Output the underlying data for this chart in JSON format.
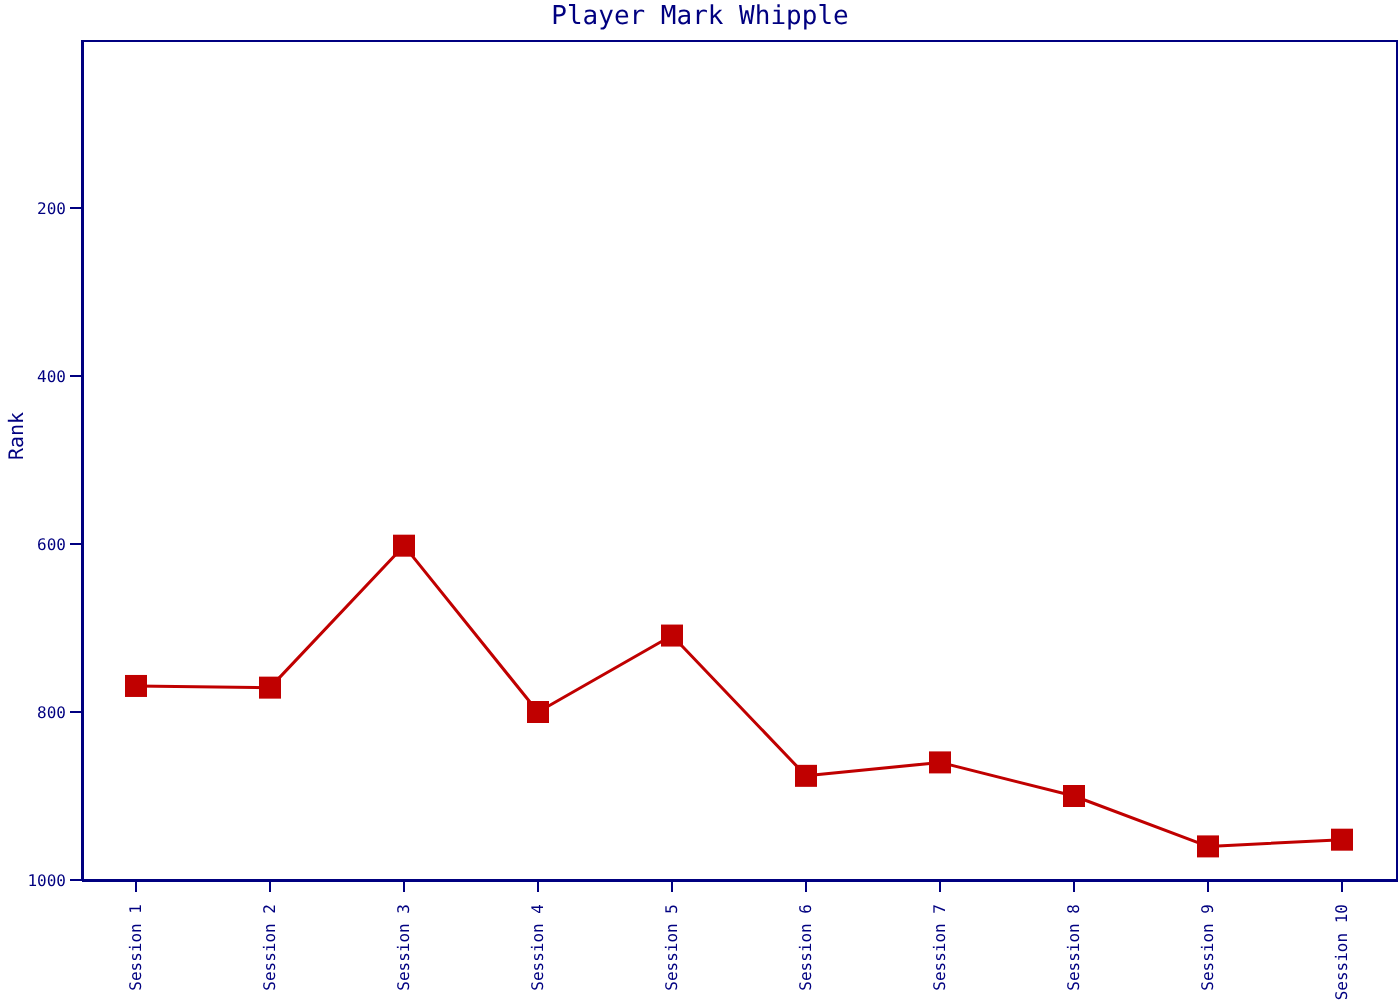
{
  "chart_data": {
    "type": "line",
    "title": "Player Mark Whipple",
    "ylabel": "Rank",
    "categories": [
      "Session 1",
      "Session 2",
      "Session 3",
      "Session 4",
      "Session 5",
      "Session 6",
      "Session 7",
      "Session 8",
      "Session 9",
      "Session 10"
    ],
    "series": [
      {
        "color": "#c00000",
        "values": [
          769,
          771,
          602,
          800,
          709,
          876,
          860,
          900,
          960,
          952
        ]
      }
    ],
    "ylim": [
      1000,
      0
    ],
    "yticks": [
      200,
      400,
      600,
      800,
      1000
    ],
    "marker": "square",
    "line_style": "solid"
  }
}
